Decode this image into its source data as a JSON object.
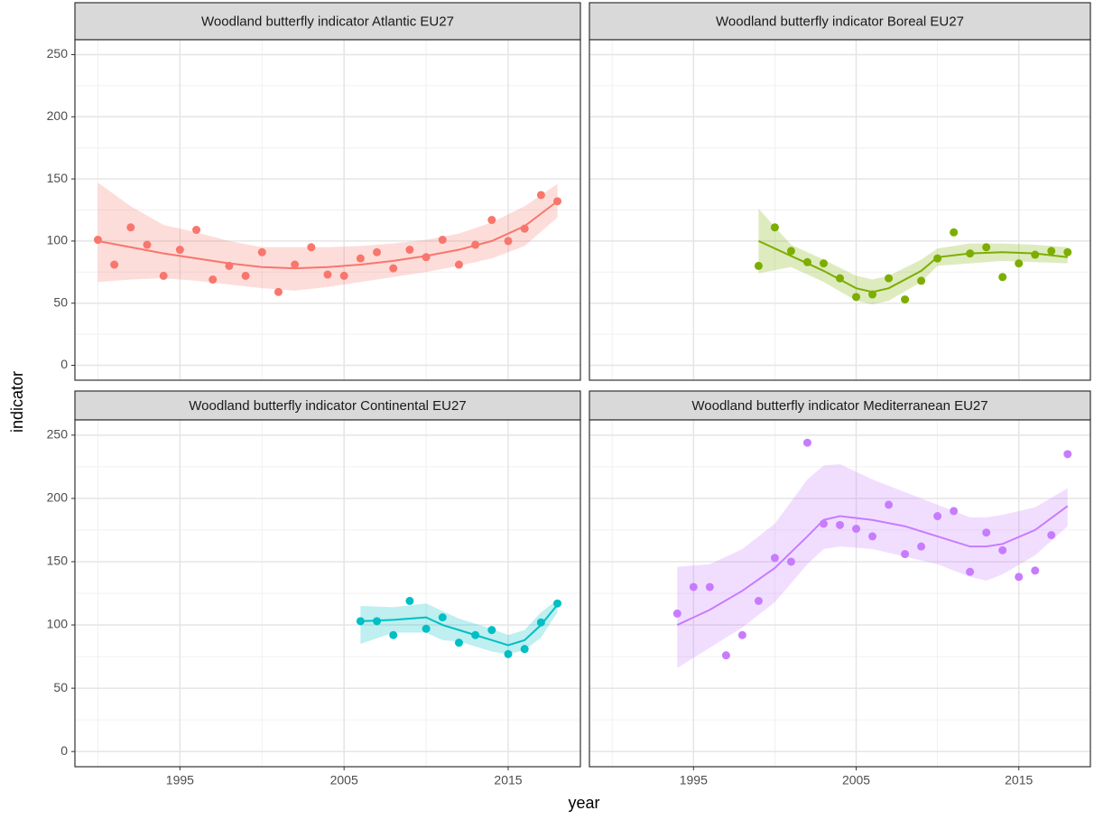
{
  "axis_titles": {
    "x": "year",
    "y": "indicator"
  },
  "chart_data": [
    {
      "type": "scatter",
      "title": "Woodland butterfly indicator Atlantic EU27",
      "color": "#F8766D",
      "x": [
        1990,
        1991,
        1992,
        1993,
        1994,
        1995,
        1996,
        1997,
        1998,
        1999,
        2000,
        2001,
        2002,
        2003,
        2004,
        2005,
        2006,
        2007,
        2008,
        2009,
        2010,
        2011,
        2012,
        2013,
        2014,
        2015,
        2016,
        2017,
        2018
      ],
      "values": [
        101,
        81,
        111,
        97,
        72,
        93,
        109,
        69,
        80,
        72,
        91,
        59,
        81,
        95,
        73,
        72,
        86,
        91,
        78,
        93,
        87,
        101,
        81,
        97,
        117,
        100,
        110,
        137,
        132
      ],
      "fit": {
        "x": [
          1990,
          1992,
          1994,
          1996,
          1998,
          2000,
          2002,
          2004,
          2006,
          2008,
          2010,
          2012,
          2014,
          2016,
          2018
        ],
        "values": [
          100,
          95,
          90,
          86,
          82,
          79,
          78,
          79,
          81,
          84,
          88,
          93,
          100,
          112,
          132
        ],
        "lower": [
          67,
          69,
          70,
          68,
          65,
          62,
          60,
          63,
          67,
          71,
          75,
          80,
          86,
          96,
          119
        ],
        "upper": [
          147,
          128,
          113,
          107,
          100,
          95,
          95,
          95,
          96,
          98,
          101,
          106,
          115,
          128,
          146
        ]
      },
      "xlim": [
        1988.6,
        2019.4
      ],
      "xticks": [
        1995,
        2005,
        2015
      ],
      "xminor": [
        1990,
        2000,
        2010
      ],
      "ylim": [
        -12,
        262
      ],
      "yticks": [
        0,
        50,
        100,
        150,
        200,
        250
      ],
      "yminor": [
        25,
        75,
        125,
        175,
        225
      ]
    },
    {
      "type": "scatter",
      "title": "Woodland butterfly indicator Boreal EU27",
      "color": "#7CAE00",
      "x": [
        1999,
        2000,
        2001,
        2002,
        2003,
        2004,
        2005,
        2006,
        2007,
        2008,
        2009,
        2010,
        2011,
        2012,
        2013,
        2014,
        2015,
        2016,
        2017,
        2018
      ],
      "values": [
        80,
        111,
        92,
        83,
        82,
        70,
        55,
        57,
        70,
        53,
        68,
        86,
        107,
        90,
        95,
        71,
        82,
        89,
        92,
        91
      ],
      "fit": {
        "x": [
          1999,
          2001,
          2003,
          2005,
          2006,
          2007,
          2009,
          2010,
          2012,
          2014,
          2016,
          2018
        ],
        "values": [
          100,
          88,
          76,
          62,
          59,
          62,
          76,
          87,
          90,
          91,
          90,
          87
        ],
        "lower": [
          74,
          79,
          67,
          52,
          49,
          52,
          67,
          80,
          82,
          84,
          83,
          82
        ],
        "upper": [
          126,
          97,
          85,
          72,
          69,
          72,
          85,
          94,
          98,
          98,
          97,
          95
        ]
      },
      "xlim": [
        1988.6,
        2019.4
      ],
      "xticks": [
        1995,
        2005,
        2015
      ],
      "xminor": [
        1990,
        2000,
        2010
      ],
      "ylim": [
        -12,
        262
      ],
      "yticks": [
        0,
        50,
        100,
        150,
        200,
        250
      ],
      "yminor": [
        25,
        75,
        125,
        175,
        225
      ]
    },
    {
      "type": "scatter",
      "title": "Woodland butterfly indicator Continental EU27",
      "color": "#00BFC4",
      "x": [
        2006,
        2007,
        2008,
        2009,
        2010,
        2011,
        2012,
        2013,
        2014,
        2015,
        2016,
        2017,
        2018
      ],
      "values": [
        103,
        103,
        92,
        119,
        97,
        106,
        86,
        92,
        96,
        77,
        81,
        102,
        117
      ],
      "fit": {
        "x": [
          2006,
          2008,
          2010,
          2011,
          2012,
          2013,
          2014,
          2015,
          2016,
          2017,
          2018
        ],
        "values": [
          103,
          104,
          106,
          100,
          96,
          92,
          88,
          84,
          88,
          100,
          116
        ],
        "lower": [
          85,
          94,
          94,
          88,
          87,
          83,
          79,
          77,
          80,
          90,
          110
        ],
        "upper": [
          115,
          114,
          117,
          111,
          105,
          101,
          97,
          92,
          96,
          110,
          120
        ]
      },
      "xlim": [
        1988.6,
        2019.4
      ],
      "xticks": [
        1995,
        2005,
        2015
      ],
      "xminor": [
        1990,
        2000,
        2010
      ],
      "ylim": [
        -12,
        262
      ],
      "yticks": [
        0,
        50,
        100,
        150,
        200,
        250
      ],
      "yminor": [
        25,
        75,
        125,
        175,
        225
      ]
    },
    {
      "type": "scatter",
      "title": "Woodland butterfly indicator Mediterranean EU27",
      "color": "#C77CFF",
      "x": [
        1994,
        1995,
        1996,
        1997,
        1998,
        1999,
        2000,
        2001,
        2002,
        2003,
        2004,
        2005,
        2006,
        2007,
        2008,
        2009,
        2010,
        2011,
        2012,
        2013,
        2014,
        2015,
        2016,
        2017,
        2018
      ],
      "values": [
        109,
        130,
        130,
        76,
        92,
        119,
        153,
        150,
        244,
        180,
        179,
        176,
        170,
        195,
        156,
        162,
        186,
        190,
        142,
        173,
        159,
        138,
        143,
        171,
        235
      ],
      "fit": {
        "x": [
          1994,
          1996,
          1998,
          2000,
          2002,
          2003,
          2004,
          2006,
          2008,
          2010,
          2012,
          2013,
          2014,
          2016,
          2018
        ],
        "values": [
          100,
          112,
          127,
          145,
          170,
          183,
          186,
          183,
          178,
          170,
          162,
          162,
          164,
          175,
          194
        ],
        "lower": [
          66,
          82,
          98,
          118,
          148,
          160,
          162,
          160,
          154,
          148,
          138,
          135,
          140,
          155,
          178
        ],
        "upper": [
          146,
          148,
          160,
          180,
          215,
          226,
          227,
          215,
          205,
          195,
          185,
          185,
          187,
          193,
          208
        ]
      },
      "xlim": [
        1988.6,
        2019.4
      ],
      "xticks": [
        1995,
        2005,
        2015
      ],
      "xminor": [
        1990,
        2000,
        2010
      ],
      "ylim": [
        -12,
        262
      ],
      "yticks": [
        0,
        50,
        100,
        150,
        200,
        250
      ],
      "yminor": [
        25,
        75,
        125,
        175,
        225
      ]
    }
  ]
}
